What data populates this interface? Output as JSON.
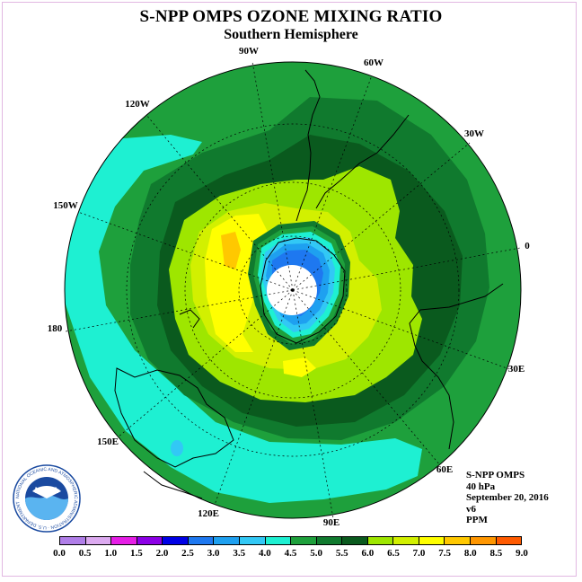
{
  "title": "S-NPP OMPS OZONE MIXING RATIO",
  "subtitle": "Southern Hemisphere",
  "longitude_labels": [
    "90W",
    "60W",
    "30W",
    "0",
    "30E",
    "60E",
    "90E",
    "120E",
    "150E",
    "180",
    "150W",
    "120W"
  ],
  "info": {
    "product": "S-NPP OMPS",
    "level": "40 hPa",
    "date": "September 20, 2016",
    "version": "v6",
    "unit": "PPM"
  },
  "colorbar": {
    "ticks": [
      "0.0",
      "0.5",
      "1.0",
      "1.5",
      "2.0",
      "2.5",
      "3.0",
      "3.5",
      "4.0",
      "4.5",
      "5.0",
      "5.5",
      "6.0",
      "6.5",
      "7.0",
      "7.5",
      "8.0",
      "8.5",
      "9.0"
    ],
    "colors": [
      "#b07ee8",
      "#dcaaf0",
      "#e61ee6",
      "#8c00e6",
      "#0000e6",
      "#1e78f0",
      "#1ea0f0",
      "#32c8f5",
      "#1ef0d2",
      "#1ea03c",
      "#107a2e",
      "#0a5a1e",
      "#9ee600",
      "#d2f000",
      "#ffff00",
      "#ffc800",
      "#ff9600",
      "#ff5a00",
      "#e60000",
      "#8c5a32"
    ]
  },
  "logo": {
    "text": "NOAA",
    "ring_text": "NATIONAL OCEANIC AND ATMOSPHERIC ADMINISTRATION · U.S. DEPARTMENT OF COMMERCE"
  },
  "map_colors": {
    "level_3_5_4_0": "#1ef0d2",
    "level_4_0_4_5": "#1ea03c",
    "level_4_5_5_0": "#107a2e",
    "level_5_0_5_5": "#0a5a1e",
    "level_5_5_6_0": "#9ee600",
    "level_6_0_6_5": "#d2f000",
    "level_6_5_7_0": "#ffff00",
    "level_7_0_7_5": "#ffc800",
    "low_1_5_2_0": "#0000e6",
    "low_2_0_2_5": "#1e78f0",
    "low_2_5_3_0": "#1ea0f0",
    "low_3_0_3_5": "#32c8f5",
    "no_data": "#ffffff"
  }
}
